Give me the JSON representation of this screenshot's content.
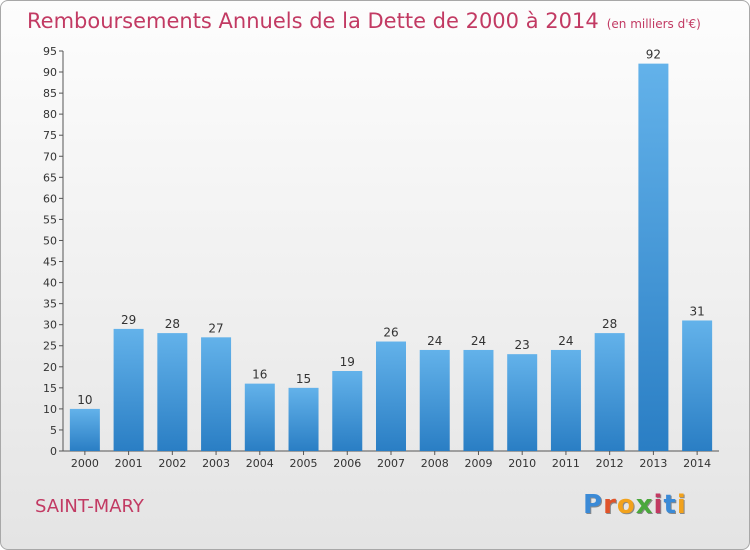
{
  "header": {
    "title": "Remboursements Annuels de la Dette de 2000 à 2014",
    "unit": "(en milliers d'€)"
  },
  "footer": {
    "location": "SAINT-MARY",
    "logo_letters": [
      "P",
      "r",
      "o",
      "x",
      "i",
      "t",
      "i"
    ]
  },
  "colors": {
    "title": "#c23a63",
    "bar_top": "#63b2ea",
    "bar_bottom": "#2a7ec4",
    "logo": [
      "#3b8ad6",
      "#e0542a",
      "#f2a21c",
      "#4aa83c",
      "#c23a63",
      "#3b8ad6",
      "#f2a21c"
    ]
  },
  "chart_data": {
    "type": "bar",
    "categories": [
      "2000",
      "2001",
      "2002",
      "2003",
      "2004",
      "2005",
      "2006",
      "2007",
      "2008",
      "2009",
      "2010",
      "2011",
      "2012",
      "2013",
      "2014"
    ],
    "values": [
      10,
      29,
      28,
      27,
      16,
      15,
      19,
      26,
      24,
      24,
      23,
      24,
      28,
      92,
      31
    ],
    "ylim": [
      0,
      95
    ],
    "yticks": [
      0,
      5,
      10,
      15,
      20,
      25,
      30,
      35,
      40,
      45,
      50,
      55,
      60,
      65,
      70,
      75,
      80,
      85,
      90,
      95
    ],
    "grid": false,
    "data_labels": true
  }
}
